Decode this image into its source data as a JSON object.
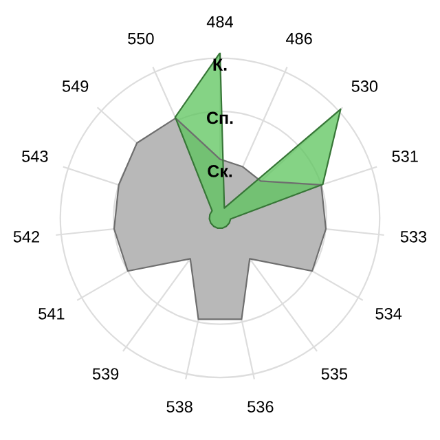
{
  "chart_data": {
    "type": "radar",
    "categories": [
      "484",
      "486",
      "530",
      "531",
      "533",
      "534",
      "535",
      "536",
      "538",
      "539",
      "541",
      "542",
      "543",
      "549",
      "550"
    ],
    "series": [
      {
        "color": "#b8b8b8",
        "values": [
          1.1,
          1.05,
          1.03,
          2.0,
          2.0,
          2.0,
          0.95,
          1.95,
          1.95,
          0.95,
          2.0,
          2.0,
          2.0,
          2.1,
          2.05
        ]
      },
      {
        "color": "#5cc45c",
        "values": [
          3.1,
          0.2,
          3.05,
          2.03,
          0.2,
          0.2,
          0.2,
          0.2,
          0.2,
          0.2,
          0.2,
          0.2,
          0.2,
          0.2,
          2.07
        ]
      }
    ],
    "ylim": [
      0,
      3.1
    ],
    "yticks": [
      {
        "value": 1,
        "label": "Ск."
      },
      {
        "value": 2,
        "label": "Сп."
      },
      {
        "value": 3,
        "label": "К."
      }
    ],
    "grid": true
  }
}
